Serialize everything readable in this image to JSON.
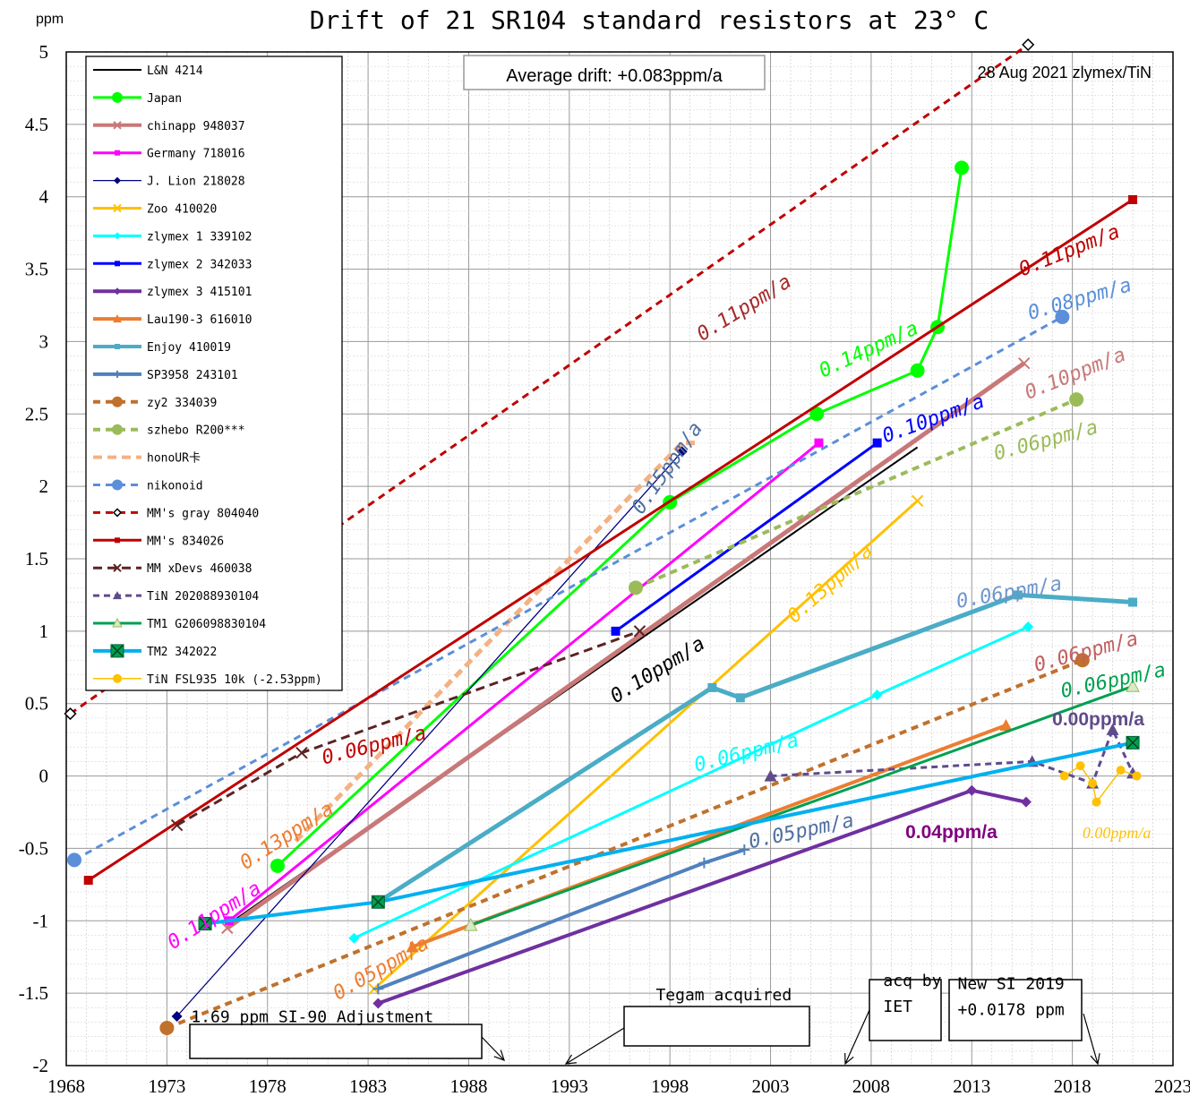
{
  "chart_data": {
    "type": "line",
    "title": "Drift of 21 SR104 standard resistors at 23° C",
    "ylabel": "ppm",
    "xlim": [
      1968,
      2023
    ],
    "ylim": [
      -2,
      5
    ],
    "xticks": [
      "1968",
      "1973",
      "1978",
      "1983",
      "1988",
      "1993",
      "1998",
      "2003",
      "2008",
      "2013",
      "2018",
      "2023"
    ],
    "yticks": [
      "5",
      "4.5",
      "4",
      "3.5",
      "3",
      "2.5",
      "2",
      "1.5",
      "1",
      "0.5",
      "0",
      "-0.5",
      "-1",
      "-1.5",
      "-2"
    ],
    "average_note": "Average drift: +0.083ppm/a",
    "credit": "28 Aug 2021 zlymex/TiN",
    "grid": true,
    "legend_position": "top-left",
    "series": [
      {
        "name": "L&N 4214",
        "color": "#000000",
        "dash": "",
        "width": 2,
        "marker": "none",
        "points": [
          [
            1976.3,
            -1.0
          ],
          [
            2010.3,
            2.27
          ]
        ]
      },
      {
        "name": "Japan",
        "color": "#00ff00",
        "dash": "",
        "width": 3,
        "marker": "circle",
        "points": [
          [
            1978.5,
            -0.62
          ],
          [
            1998,
            1.89
          ],
          [
            2005.3,
            2.5
          ],
          [
            2010.3,
            2.8
          ],
          [
            2011.3,
            3.1
          ],
          [
            2012.5,
            4.2
          ]
        ]
      },
      {
        "name": "chinapp  948037",
        "color": "#c87878",
        "dash": "",
        "width": 5,
        "marker": "x",
        "points": [
          [
            1976,
            -1.05
          ],
          [
            2015.6,
            2.85
          ]
        ]
      },
      {
        "name": "Germany  718016",
        "color": "#ff00ff",
        "dash": "",
        "width": 3,
        "marker": "square",
        "points": [
          [
            1976.1,
            -1.0
          ],
          [
            2005.4,
            2.3
          ]
        ]
      },
      {
        "name": "J. Lion  218028",
        "color": "#000080",
        "dash": "",
        "width": 1.3,
        "marker": "diamond",
        "points": [
          [
            1973.5,
            -1.66
          ],
          [
            1998.6,
            2.24
          ]
        ]
      },
      {
        "name": "Zoo      410020",
        "color": "#ffc000",
        "dash": "",
        "width": 3,
        "marker": "x",
        "points": [
          [
            1983.3,
            -1.47
          ],
          [
            2010.3,
            1.9
          ]
        ]
      },
      {
        "name": "zlymex 1  339102",
        "color": "#00ffff",
        "dash": "",
        "width": 3,
        "marker": "diamond",
        "points": [
          [
            1982.3,
            -1.12
          ],
          [
            2008.3,
            0.56
          ],
          [
            2015.8,
            1.03
          ]
        ]
      },
      {
        "name": "zlymex 2  342033",
        "color": "#0000ff",
        "dash": "",
        "width": 3,
        "marker": "square",
        "points": [
          [
            1995.3,
            1.0
          ],
          [
            2008.3,
            2.3
          ]
        ]
      },
      {
        "name": "zlymex 3  415101",
        "color": "#7030a0",
        "dash": "",
        "width": 4,
        "marker": "diamond",
        "points": [
          [
            1983.5,
            -1.57
          ],
          [
            2013,
            -0.1
          ],
          [
            2015.7,
            -0.18
          ]
        ]
      },
      {
        "name": "Lau190-3  616010",
        "color": "#ed7d31",
        "dash": "",
        "width": 4,
        "marker": "triangle",
        "points": [
          [
            1985.2,
            -1.18
          ],
          [
            1988.1,
            -1.03
          ],
          [
            2014.7,
            0.35
          ]
        ]
      },
      {
        "name": "Enjoy    410019",
        "color": "#4bacc6",
        "dash": "",
        "width": 5,
        "marker": "square",
        "points": [
          [
            1983.5,
            -0.87
          ],
          [
            2000.1,
            0.61
          ],
          [
            2001.5,
            0.54
          ],
          [
            2015.3,
            1.25
          ],
          [
            2021,
            1.2
          ]
        ]
      },
      {
        "name": "SP3958   243101",
        "color": "#4f81bd",
        "dash": "",
        "width": 4,
        "marker": "plus",
        "points": [
          [
            1983.5,
            -1.47
          ],
          [
            1999.7,
            -0.6
          ],
          [
            2001.7,
            -0.51
          ]
        ]
      },
      {
        "name": "zy2      334039",
        "color": "#c0712c",
        "dash": "8,6",
        "width": 4,
        "marker": "circle",
        "points": [
          [
            1973,
            -1.74
          ],
          [
            2018.5,
            0.8
          ]
        ]
      },
      {
        "name": "szhebo  R200***",
        "color": "#9bbb59",
        "dash": "8,6",
        "width": 4,
        "marker": "circle",
        "points": [
          [
            1996.3,
            1.3
          ],
          [
            2018.2,
            2.6
          ]
        ]
      },
      {
        "name": "honoUR卡",
        "color": "#f4b183",
        "dash": "10,6",
        "width": 5,
        "marker": "none",
        "points": [
          [
            1979.4,
            -0.45
          ],
          [
            1998.6,
            2.3
          ],
          [
            1999.5,
            2.3
          ]
        ]
      },
      {
        "name": "nikonoid",
        "color": "#5b8fd9",
        "dash": "8,6",
        "width": 3,
        "marker": "circle",
        "points": [
          [
            1968.4,
            -0.58
          ],
          [
            2017.5,
            3.17
          ]
        ]
      },
      {
        "name": "MM's gray 804040",
        "color": "#c00000",
        "dash": "8,6",
        "width": 3,
        "marker": "diamond-open",
        "points": [
          [
            1968.2,
            0.43
          ],
          [
            2015.8,
            5.05
          ]
        ]
      },
      {
        "name": "MM's 834026",
        "color": "#c00000",
        "dash": "",
        "width": 3,
        "marker": "square",
        "points": [
          [
            1969.1,
            -0.72
          ],
          [
            2021,
            3.98
          ]
        ]
      },
      {
        "name": "MM xDevs  460038",
        "color": "#5c2323",
        "dash": "10,6",
        "width": 3,
        "marker": "x",
        "points": [
          [
            1973.5,
            -0.34
          ],
          [
            1979.7,
            0.16
          ],
          [
            1996.5,
            1.0
          ]
        ]
      },
      {
        "name": "TiN 202088930104",
        "color": "#5f4b8b",
        "dash": "7,5",
        "width": 3,
        "marker": "triangle",
        "points": [
          [
            2003,
            0.0
          ],
          [
            2016,
            0.1
          ],
          [
            2019,
            -0.05
          ],
          [
            2020,
            0.32
          ],
          [
            2021,
            0.02
          ]
        ]
      },
      {
        "name": "TM1 G206098830104",
        "color": "#00a050",
        "dash": "",
        "width": 3,
        "marker": "triangle-open",
        "points": [
          [
            1988.1,
            -1.03
          ],
          [
            2021,
            0.62
          ]
        ]
      },
      {
        "name": "TM2 342022",
        "color": "#00b0f0",
        "dash": "",
        "width": 4,
        "marker": "boxx",
        "points": [
          [
            1974.9,
            -1.02
          ],
          [
            1983.5,
            -0.87
          ],
          [
            2021,
            0.23
          ]
        ]
      },
      {
        "name": "TiN FSL935 10k (-2.53ppm)",
        "color": "#ffc000",
        "dash": "",
        "width": 1.5,
        "marker": "circle-small",
        "points": [
          [
            2017.6,
            0.0
          ],
          [
            2018.4,
            0.07
          ],
          [
            2019,
            -0.05
          ],
          [
            2019.2,
            -0.18
          ],
          [
            2020.4,
            0.04
          ],
          [
            2021.2,
            0.0
          ]
        ]
      }
    ],
    "annotations": [
      {
        "text": "0.11ppm/a",
        "color": "#a52a2a",
        "x": 1999.6,
        "y": 3.0,
        "angle": -32
      },
      {
        "text": "0.11ppm/a",
        "color": "#c00000",
        "x": 2015.5,
        "y": 3.45,
        "angle": -22
      },
      {
        "text": "0.14ppm/a",
        "color": "#00ff00",
        "x": 2005.6,
        "y": 2.75,
        "angle": -25
      },
      {
        "text": "0.08ppm/a",
        "color": "#5b8fd9",
        "x": 2015.9,
        "y": 3.15,
        "angle": -16
      },
      {
        "text": "0.10ppm/a",
        "color": "#c87878",
        "x": 2015.8,
        "y": 2.6,
        "angle": -22
      },
      {
        "text": "0.10ppm/a",
        "color": "#0000ff",
        "x": 2008.7,
        "y": 2.3,
        "angle": -20
      },
      {
        "text": "0.06ppm/a",
        "color": "#9bbb59",
        "x": 2014.2,
        "y": 2.18,
        "angle": -15
      },
      {
        "text": "0.15ppm/a",
        "color": "#4f6f9f",
        "x": 1996.6,
        "y": 1.8,
        "angle": -55
      },
      {
        "text": "0.13ppm/a",
        "color": "#ffc000",
        "x": 2004.2,
        "y": 1.05,
        "angle": -42
      },
      {
        "text": "0.06ppm/a",
        "color": "#6f95c9",
        "x": 2012.3,
        "y": 1.16,
        "angle": -10
      },
      {
        "text": "0.06ppm/a",
        "color": "#c06060",
        "x": 2016.2,
        "y": 0.72,
        "angle": -15
      },
      {
        "text": "0.06ppm/a",
        "color": "#00a050",
        "x": 2017.5,
        "y": 0.54,
        "angle": -12
      },
      {
        "text": "0.00ppm/a",
        "color": "#5f4b8b",
        "x": 2017,
        "y": 0.35,
        "angle": 0,
        "bold": true
      },
      {
        "text": "0.10ppm/a",
        "color": "#000000",
        "x": 1995.3,
        "y": 0.5,
        "angle": -32
      },
      {
        "text": "0.06ppm/a",
        "color": "#c00000",
        "x": 1980.8,
        "y": 0.08,
        "angle": -14
      },
      {
        "text": "0.06ppm/a",
        "color": "#00ffff",
        "x": 1999.3,
        "y": 0.03,
        "angle": -14
      },
      {
        "text": "0.13ppm/a",
        "color": "#ed7d31",
        "x": 1976.9,
        "y": -0.65,
        "angle": -33
      },
      {
        "text": "0.11ppm/a",
        "color": "#ff00ff",
        "x": 1973.3,
        "y": -1.2,
        "angle": -33
      },
      {
        "text": "0.05ppm/a",
        "color": "#4f6f9f",
        "x": 2002,
        "y": -0.5,
        "angle": -12
      },
      {
        "text": "0.04ppm/a",
        "color": "#800080",
        "x": 2009.7,
        "y": -0.43,
        "angle": 0,
        "bold": true
      },
      {
        "text": "0.00ppm/a",
        "color": "#ffc000",
        "x": 2018.5,
        "y": -0.43,
        "angle": 0,
        "small": true
      },
      {
        "text": "0.05ppm/a",
        "color": "#ed7d31",
        "x": 1981.5,
        "y": -1.55,
        "angle": -30
      }
    ],
    "boxes": [
      {
        "text": "1.69 ppm SI-90 Adjustment",
        "x": 1974.2,
        "y": -1.7
      },
      {
        "text": "Tegam acquired",
        "x": 1997.3,
        "y": -1.55
      },
      {
        "text": "acq by",
        "x": 2008.6,
        "y": -1.45
      },
      {
        "text": "IET",
        "x": 2008.6,
        "y": -1.63
      },
      {
        "text": "New SI 2019",
        "x": 2012.3,
        "y": -1.47
      },
      {
        "text": "+0.0178 ppm",
        "x": 2012.3,
        "y": -1.65
      }
    ]
  }
}
